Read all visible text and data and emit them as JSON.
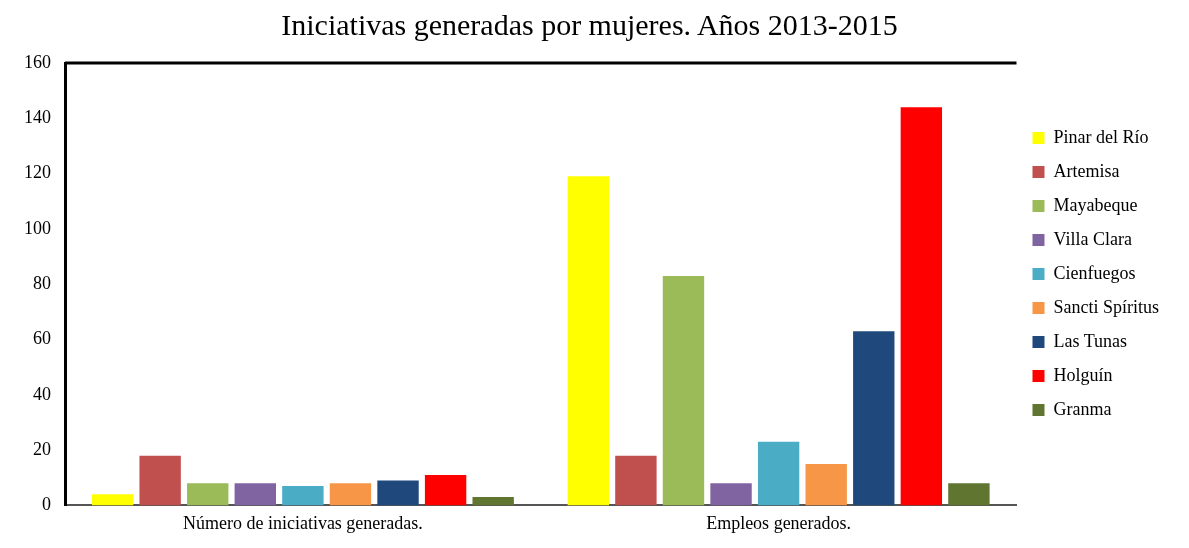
{
  "chart_data": {
    "type": "bar",
    "title": "Iniciativas generadas por mujeres. Años 2013-2015",
    "categories": [
      "Número de iniciativas generadas.",
      "Empleos generados."
    ],
    "series": [
      {
        "name": "Pinar del Río",
        "color": "#ffff00",
        "values": [
          4,
          119
        ]
      },
      {
        "name": "Artemisa",
        "color": "#c0504d",
        "values": [
          18,
          18
        ]
      },
      {
        "name": "Mayabeque",
        "color": "#9bbb59",
        "values": [
          8,
          83
        ]
      },
      {
        "name": "Villa Clara",
        "color": "#8064a2",
        "values": [
          8,
          8
        ]
      },
      {
        "name": "Cienfuegos",
        "color": "#4bacc6",
        "values": [
          7,
          23
        ]
      },
      {
        "name": "Sancti Spíritus",
        "color": "#f79646",
        "values": [
          8,
          15
        ]
      },
      {
        "name": "Las Tunas",
        "color": "#1f497d",
        "values": [
          9,
          63
        ]
      },
      {
        "name": "Holguín",
        "color": "#ff0000",
        "values": [
          11,
          144
        ]
      },
      {
        "name": "Granma",
        "color": "#5f7530",
        "values": [
          3,
          8
        ]
      }
    ],
    "ylim": [
      0,
      160
    ],
    "yticks": [
      0,
      20,
      40,
      60,
      80,
      100,
      120,
      140,
      160
    ],
    "grid": false,
    "legend": "right"
  }
}
